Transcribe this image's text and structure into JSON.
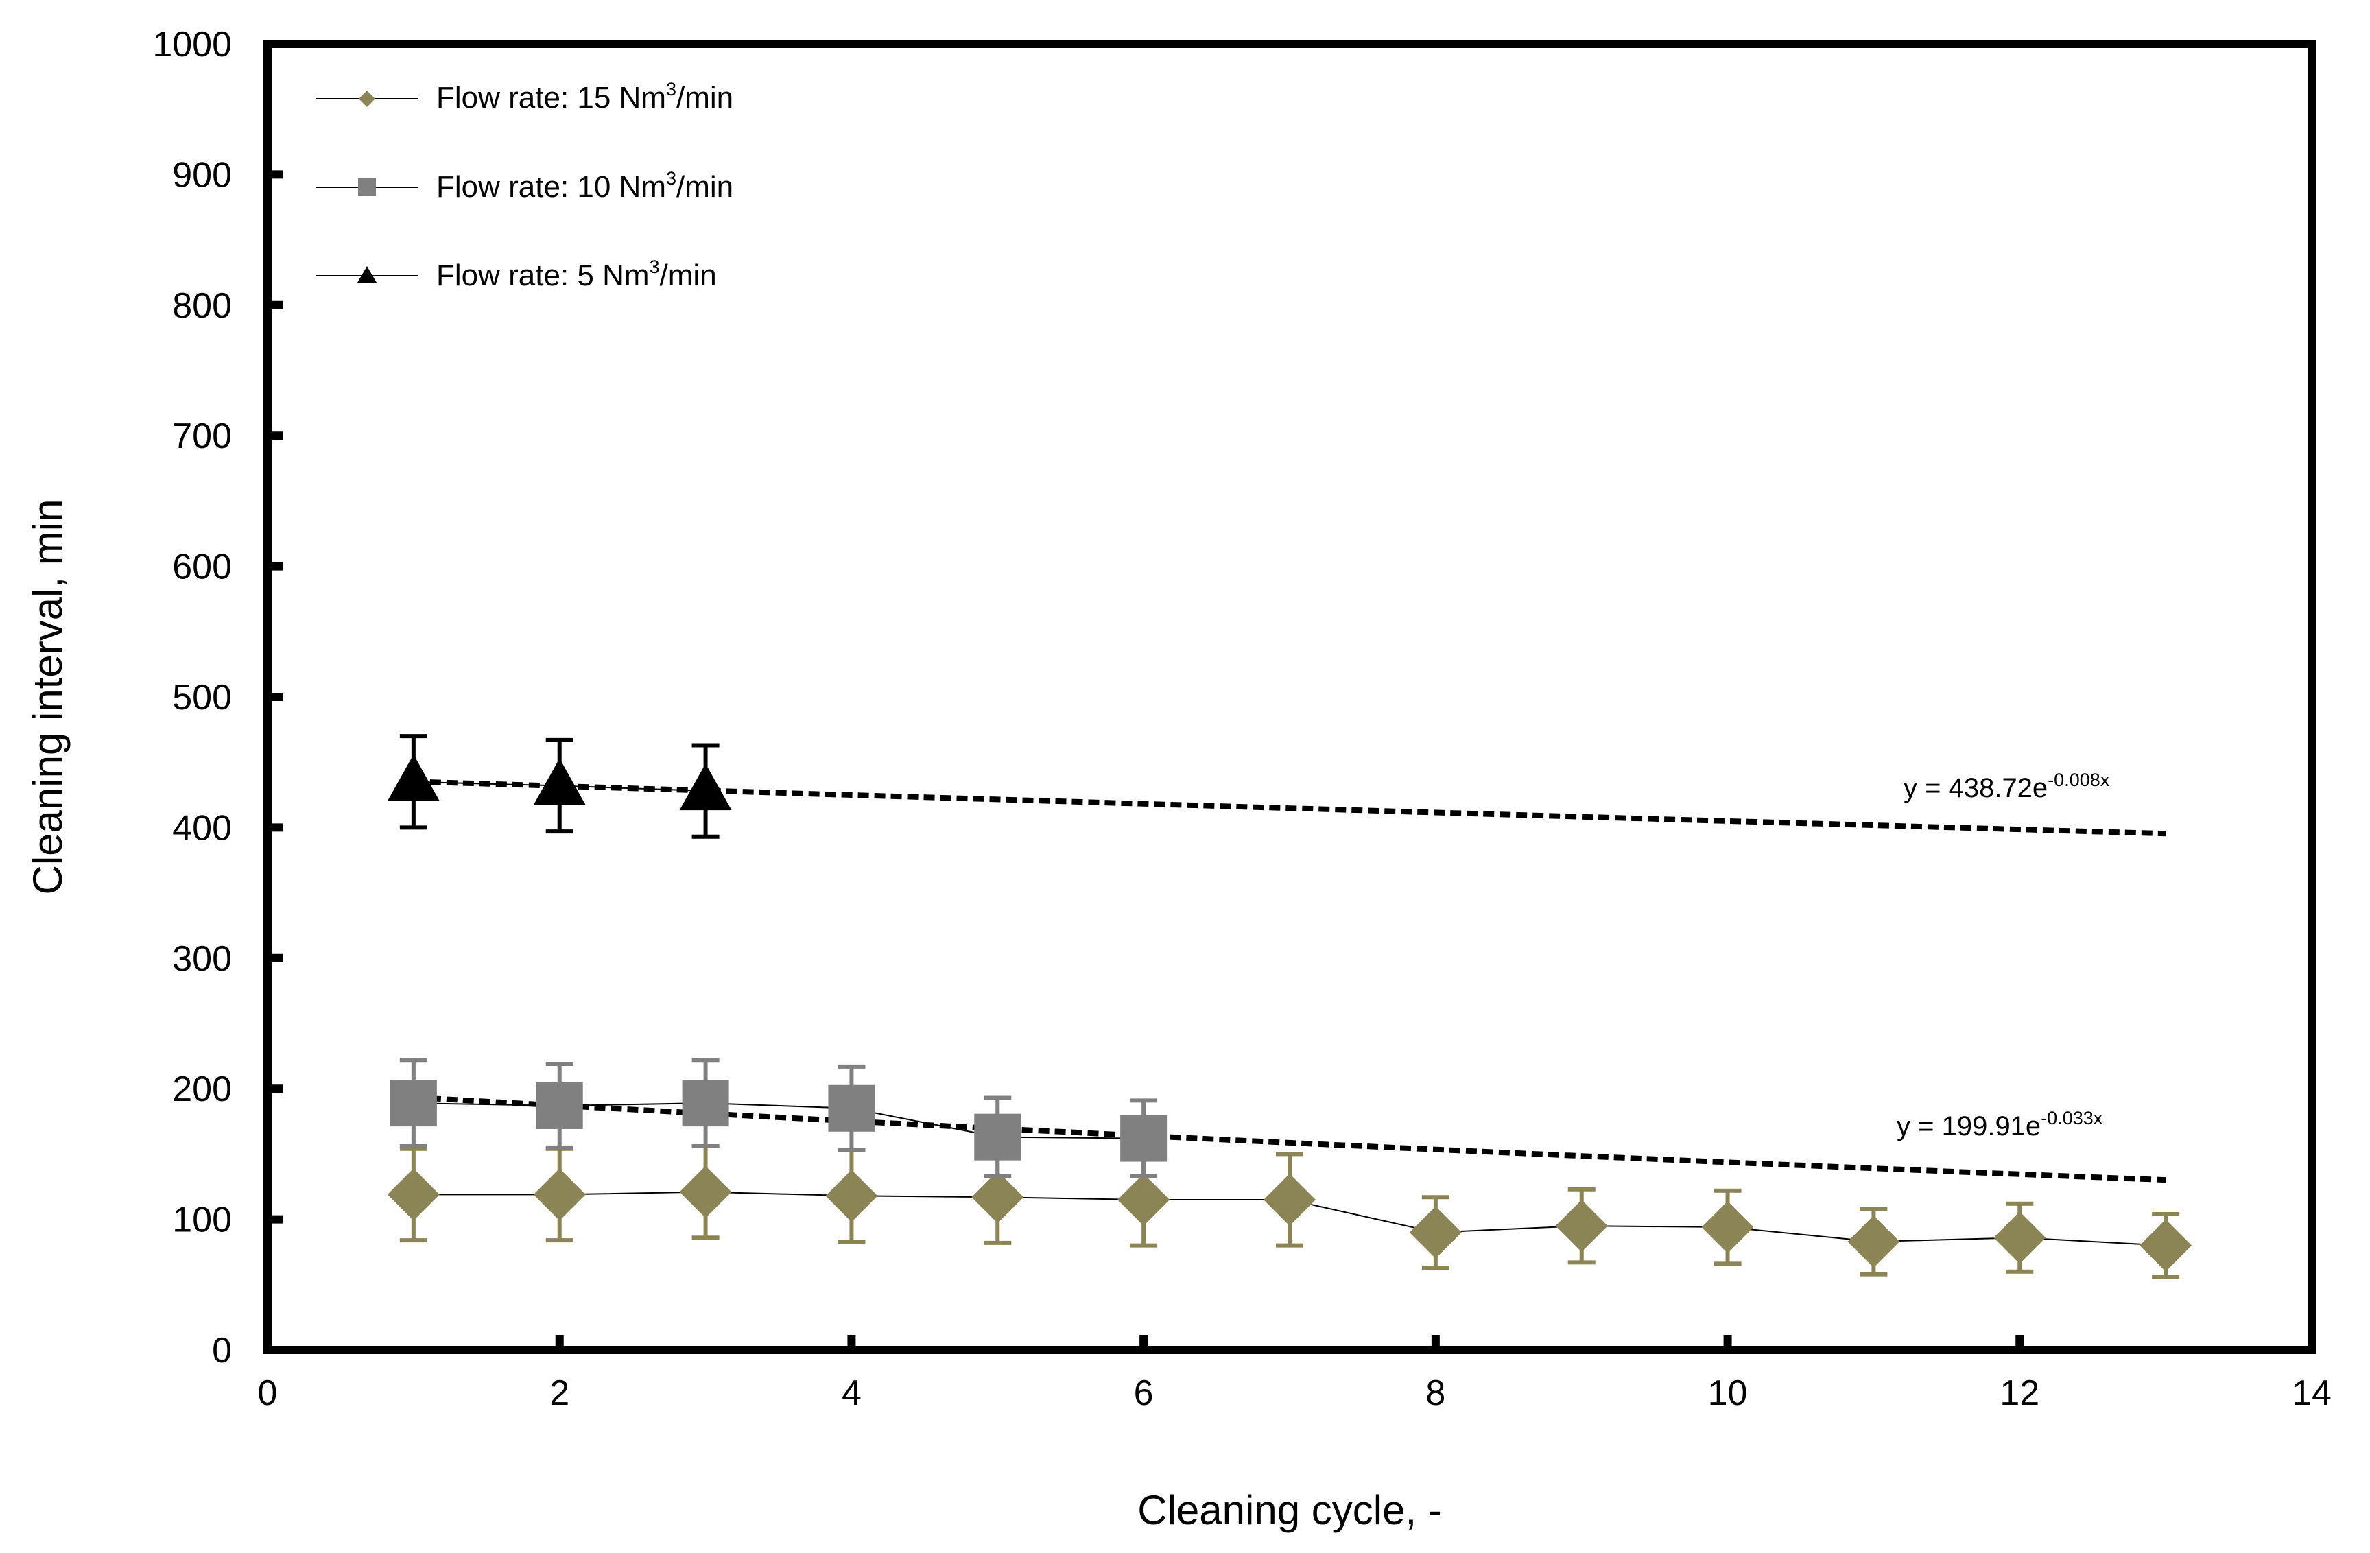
{
  "chart_data": {
    "type": "scatter",
    "xlabel": "Cleaning cycle, -",
    "ylabel": "Cleaning interval, min",
    "xlim": [
      0,
      14
    ],
    "ylim": [
      0,
      1000
    ],
    "xticks": [
      "0",
      "2",
      "4",
      "6",
      "8",
      "10",
      "12",
      "14"
    ],
    "yticks": [
      "0",
      "100",
      "200",
      "300",
      "400",
      "500",
      "600",
      "700",
      "800",
      "900",
      "1000"
    ],
    "legend_position": "top-left",
    "series": [
      {
        "name": "Flow rate: 15 Nm3/min",
        "label_main": "Flow rate: 15 Nm",
        "label_sup": "3",
        "label_tail": "/min",
        "marker": "diamond",
        "color": "#8b8455",
        "x": [
          1,
          2,
          3,
          4,
          5,
          6,
          7,
          8,
          9,
          10,
          11,
          12,
          13
        ],
        "y": [
          119,
          119,
          121,
          118,
          117,
          115,
          115,
          90,
          95,
          94,
          83,
          86,
          80
        ],
        "err": [
          35,
          35,
          35,
          35,
          35,
          35,
          35,
          27,
          28,
          28,
          25,
          26,
          24
        ]
      },
      {
        "name": "Flow rate: 10 Nm3/min",
        "label_main": "Flow rate: 10 Nm",
        "label_sup": "3",
        "label_tail": "/min",
        "marker": "square",
        "color": "#808080",
        "x": [
          1,
          2,
          3,
          4,
          5,
          6
        ],
        "y": [
          189,
          187,
          189,
          185,
          163,
          162
        ],
        "err": [
          33,
          32,
          33,
          32,
          30,
          29
        ]
      },
      {
        "name": "Flow rate: 5 Nm3/min",
        "label_main": "Flow rate: 5 Nm",
        "label_sup": "3",
        "label_tail": "/min",
        "marker": "triangle",
        "color": "#000000",
        "x": [
          1,
          2,
          3
        ],
        "y": [
          435,
          432,
          428
        ],
        "err": [
          35,
          35,
          35
        ]
      }
    ],
    "trendlines": [
      {
        "equation_main": "y = 438.72e",
        "equation_sup": "-0.008x",
        "a": 438.72,
        "b": -0.008,
        "x_range": [
          1,
          13
        ]
      },
      {
        "equation_main": "y = 199.91e",
        "equation_sup": "-0.033x",
        "a": 199.91,
        "b": -0.033,
        "x_range": [
          1,
          13
        ]
      }
    ]
  }
}
